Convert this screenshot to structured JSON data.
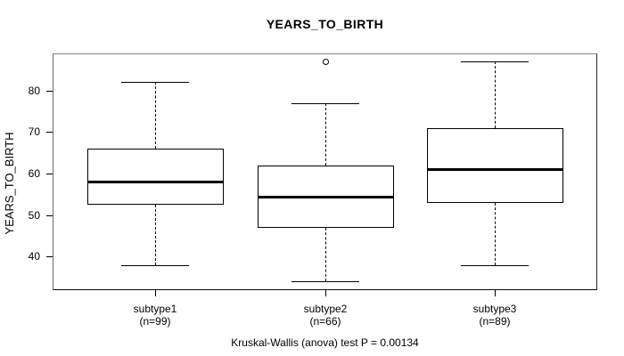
{
  "chart_data": {
    "type": "boxplot",
    "title": "YEARS_TO_BIRTH",
    "ylabel": "YEARS_TO_BIRTH",
    "caption": "Kruskal-Wallis (anova) test P = 0.00134",
    "ylim": [
      31.9,
      88.9
    ],
    "yticks": [
      40,
      50,
      60,
      70,
      80
    ],
    "grid": false,
    "legend": false,
    "groups": [
      {
        "label": "subtype1",
        "sublabel": "(n=99)",
        "whisker_low": 38,
        "q1": 52.5,
        "median": 58,
        "q3": 66,
        "whisker_high": 82,
        "outliers": []
      },
      {
        "label": "subtype2",
        "sublabel": "(n=66)",
        "whisker_low": 34,
        "q1": 47,
        "median": 54.5,
        "q3": 62,
        "whisker_high": 77,
        "outliers": [
          87
        ]
      },
      {
        "label": "subtype3",
        "sublabel": "(n=89)",
        "whisker_low": 38,
        "q1": 53,
        "median": 61,
        "q3": 71,
        "whisker_high": 87,
        "outliers": []
      }
    ],
    "colors": {
      "background": "#ffffff",
      "frame": "#808080",
      "box_line": "#000000",
      "text": "#000000"
    }
  }
}
